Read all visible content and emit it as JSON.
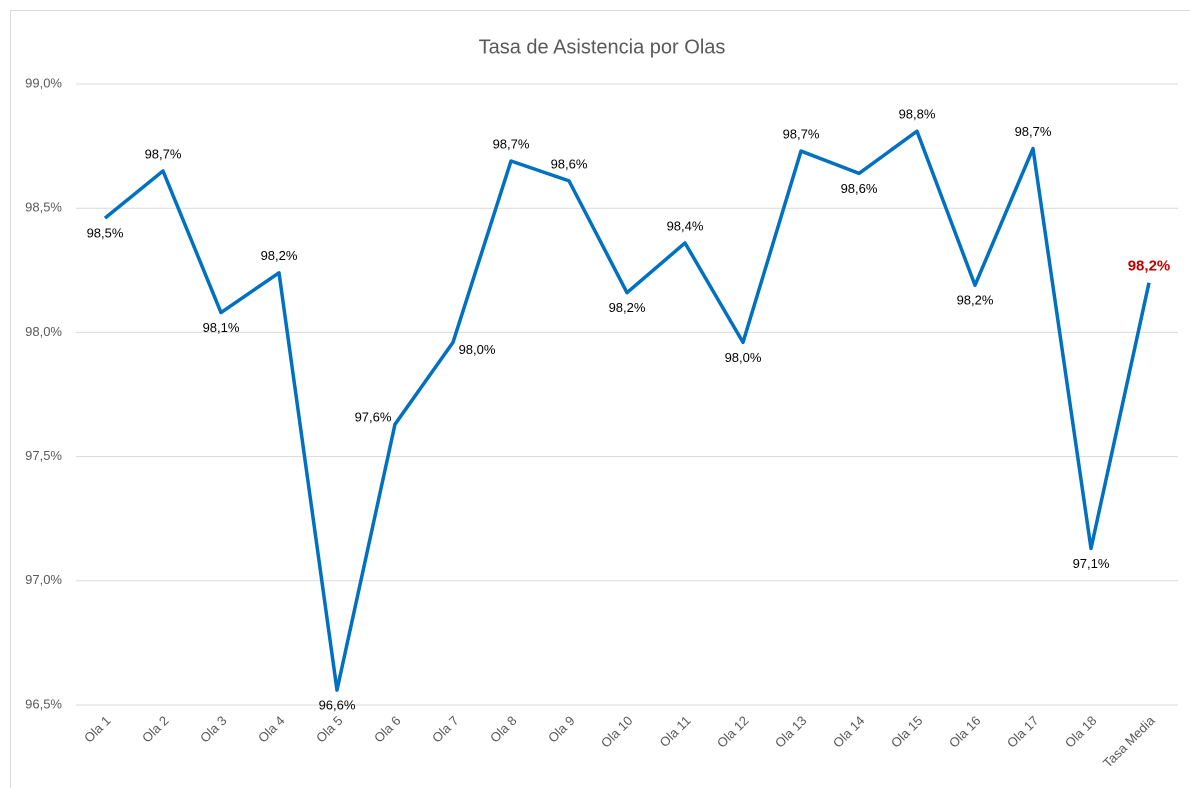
{
  "chart_data": {
    "type": "line",
    "title": "Tasa de Asistencia por Olas",
    "categories": [
      "Ola 1",
      "Ola 2",
      "Ola 3",
      "Ola 4",
      "Ola 5",
      "Ola 6",
      "Ola 7",
      "Ola 8",
      "Ola 9",
      "Ola 10",
      "Ola 11",
      "Ola 12",
      "Ola 13",
      "Ola 14",
      "Ola 15",
      "Ola 16",
      "Ola 17",
      "Ola 18",
      "Tasa Media"
    ],
    "series": [
      {
        "name": "Tasa de Asistencia",
        "color": "#0070c0",
        "values": [
          98.46,
          98.65,
          98.08,
          98.24,
          96.56,
          97.63,
          97.96,
          98.69,
          98.61,
          98.16,
          98.36,
          97.96,
          98.73,
          98.64,
          98.81,
          98.19,
          98.74,
          97.13,
          98.2
        ],
        "value_labels": [
          "98,5%",
          "98,7%",
          "98,1%",
          "98,2%",
          "96,6%",
          "97,6%",
          "98,0%",
          "98,7%",
          "98,6%",
          "98,2%",
          "98,4%",
          "98,0%",
          "98,7%",
          "98,6%",
          "98,8%",
          "98,2%",
          "98,7%",
          "97,1%",
          "98,2%"
        ]
      }
    ],
    "highlight_color": "#c00000",
    "ylim": [
      96.5,
      99.0
    ],
    "yticks": [
      {
        "value": 96.5,
        "label": "96,5%"
      },
      {
        "value": 97.0,
        "label": "97,0%"
      },
      {
        "value": 97.5,
        "label": "97,5%"
      },
      {
        "value": 98.0,
        "label": "98,0%"
      },
      {
        "value": 98.5,
        "label": "98,5%"
      },
      {
        "value": 99.0,
        "label": "99,0%"
      }
    ],
    "grid": true
  }
}
